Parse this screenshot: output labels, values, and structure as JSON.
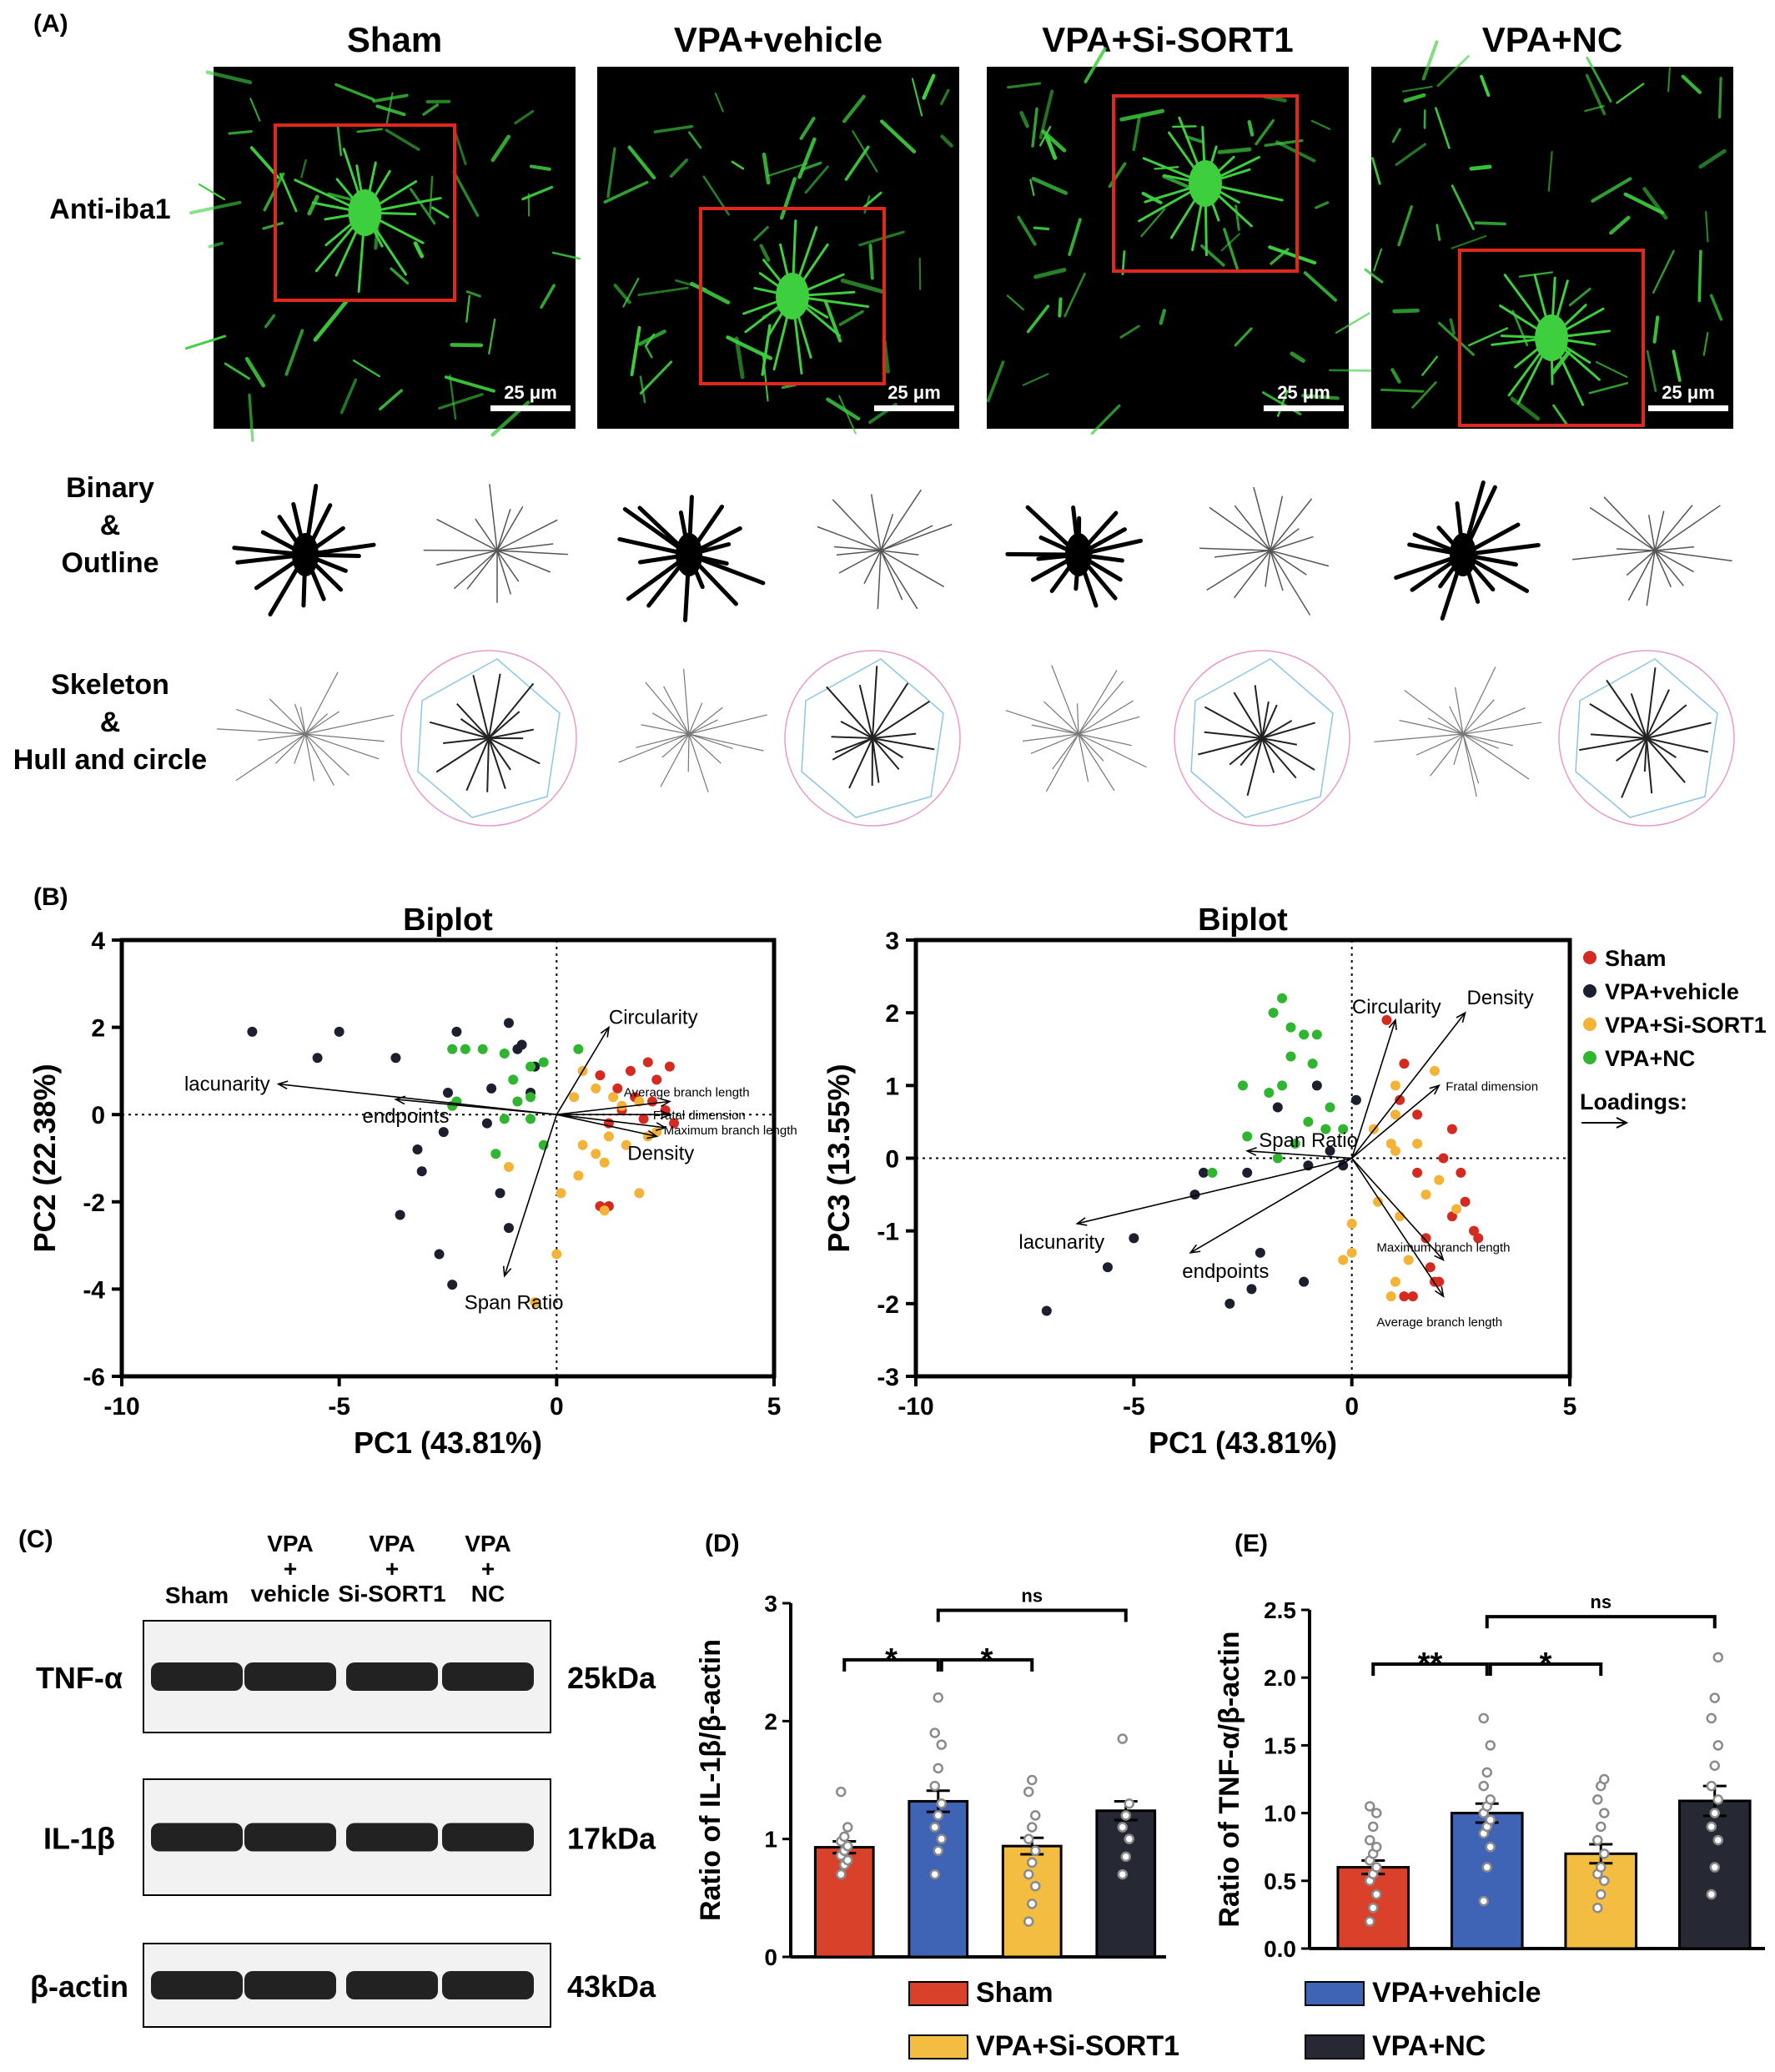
{
  "panel_labels": [
    "(A)",
    "(B)",
    "(C)",
    "(D)",
    "(E)"
  ],
  "panel_a": {
    "columns": [
      "Sham",
      "VPA+vehicle",
      "VPA+Si-SORT1",
      "VPA+NC"
    ],
    "row_labels": [
      [
        "Anti-iba1"
      ],
      [
        "Binary",
        "&",
        "Outline"
      ],
      [
        "Skeleton",
        "&",
        "Hull and circle"
      ]
    ],
    "scale_bar": "25 μm",
    "colors": {
      "stain": "#3ecf3e",
      "box": "#e0281e"
    }
  },
  "groups": [
    {
      "name": "Sham",
      "color": "#d42a20"
    },
    {
      "name": "VPA+vehicle",
      "color": "#1b1f2e"
    },
    {
      "name": "VPA+Si-SORT1",
      "color": "#f2b336"
    },
    {
      "name": "VPA+NC",
      "color": "#2fb52f"
    }
  ],
  "biplot_legend_extra": "Loadings:",
  "panel_c": {
    "lanes": [
      "Sham",
      "VPA\n+\nvehicle",
      "VPA\n+\nSi-SORT1",
      "VPA\n+\nNC"
    ],
    "bands": [
      {
        "name": "TNF-α",
        "kda": "25kDa"
      },
      {
        "name": "IL-1β",
        "kda": "17kDa"
      },
      {
        "name": "β-actin",
        "kda": "43kDa"
      }
    ]
  },
  "bar_legend": [
    {
      "name": "Sham",
      "color": "#d9412b"
    },
    {
      "name": "VPA+vehicle",
      "color": "#3f63b5"
    },
    {
      "name": "VPA+Si-SORT1",
      "color": "#f2bd41"
    },
    {
      "name": "VPA+NC",
      "color": "#262833"
    }
  ],
  "chart_data": [
    {
      "type": "scatter",
      "title": "Biplot",
      "xlabel": "PC1 (43.81%)",
      "ylabel": "PC2 (22.38%)",
      "xlim": [
        -10,
        5
      ],
      "ylim": [
        -6,
        4
      ],
      "xticks": [
        -10,
        -5,
        0,
        5
      ],
      "yticks": [
        -6,
        -4,
        -2,
        0,
        2,
        4
      ],
      "series": [
        {
          "name": "Sham",
          "points": [
            [
              1.0,
              0.9
            ],
            [
              1.4,
              0.6
            ],
            [
              1.7,
              1.0
            ],
            [
              2.1,
              1.2
            ],
            [
              2.3,
              0.8
            ],
            [
              2.6,
              1.1
            ],
            [
              2.2,
              0.3
            ],
            [
              2.5,
              0.1
            ],
            [
              2.0,
              -0.1
            ],
            [
              1.2,
              -0.2
            ],
            [
              1.8,
              0.4
            ],
            [
              2.7,
              -0.2
            ],
            [
              1.0,
              -2.1
            ],
            [
              1.2,
              -2.1
            ],
            [
              1.5,
              0.1
            ]
          ]
        },
        {
          "name": "VPA+vehicle",
          "points": [
            [
              -7.0,
              1.9
            ],
            [
              -5.0,
              1.9
            ],
            [
              -5.5,
              1.3
            ],
            [
              -3.7,
              1.3
            ],
            [
              -2.3,
              1.9
            ],
            [
              -1.1,
              2.1
            ],
            [
              -0.9,
              1.5
            ],
            [
              -0.5,
              1.1
            ],
            [
              -0.8,
              1.6
            ],
            [
              -0.6,
              0.5
            ],
            [
              -1.5,
              0.6
            ],
            [
              -2.5,
              0.5
            ],
            [
              -1.6,
              -0.2
            ],
            [
              -2.6,
              -0.4
            ],
            [
              -3.2,
              -0.8
            ],
            [
              -3.1,
              -1.3
            ],
            [
              -1.3,
              -1.8
            ],
            [
              -3.6,
              -2.3
            ],
            [
              -1.1,
              -2.6
            ],
            [
              -2.7,
              -3.2
            ],
            [
              -2.4,
              -3.9
            ]
          ]
        },
        {
          "name": "VPA+Si-SORT1",
          "points": [
            [
              0.6,
              1.0
            ],
            [
              0.9,
              0.6
            ],
            [
              1.3,
              0.4
            ],
            [
              1.5,
              0.2
            ],
            [
              0.4,
              0.4
            ],
            [
              1.9,
              0.3
            ],
            [
              1.2,
              -0.5
            ],
            [
              1.6,
              -0.7
            ],
            [
              0.6,
              -0.7
            ],
            [
              2.1,
              -0.5
            ],
            [
              2.3,
              -0.4
            ],
            [
              0.9,
              -0.9
            ],
            [
              0.5,
              -1.4
            ],
            [
              1.1,
              -1.1
            ],
            [
              0.1,
              -1.8
            ],
            [
              1.1,
              -2.2
            ],
            [
              1.9,
              -1.8
            ],
            [
              -1.1,
              -1.2
            ],
            [
              0.0,
              -3.2
            ],
            [
              -0.5,
              -4.3
            ]
          ]
        },
        {
          "name": "VPA+NC",
          "points": [
            [
              -2.4,
              1.5
            ],
            [
              -2.1,
              1.5
            ],
            [
              -1.7,
              1.5
            ],
            [
              -1.2,
              1.4
            ],
            [
              -0.6,
              1.1
            ],
            [
              0.5,
              1.5
            ],
            [
              -0.3,
              1.2
            ],
            [
              -1.0,
              0.8
            ],
            [
              -2.3,
              0.3
            ],
            [
              -2.4,
              0.2
            ],
            [
              -1.2,
              -0.1
            ],
            [
              -0.6,
              0.4
            ],
            [
              -0.3,
              -0.7
            ],
            [
              -1.4,
              -0.9
            ],
            [
              -0.9,
              0.3
            ],
            [
              -0.6,
              -0.1
            ]
          ]
        }
      ],
      "loadings": [
        {
          "name": "lacunarity",
          "x": -6.4,
          "y": 0.7
        },
        {
          "name": "endpoints",
          "x": -3.7,
          "y": 0.35
        },
        {
          "name": "Circularity",
          "x": 1.2,
          "y": 2.0
        },
        {
          "name": "Average branch length",
          "x": 2.6,
          "y": 0.3
        },
        {
          "name": "Fratal dimension",
          "x": 2.6,
          "y": 0.0
        },
        {
          "name": "Maximum branch length",
          "x": 2.5,
          "y": -0.3
        },
        {
          "name": "Density",
          "x": 2.3,
          "y": -0.5
        },
        {
          "name": "Span Ratio",
          "x": -1.2,
          "y": -3.7
        }
      ]
    },
    {
      "type": "scatter",
      "title": "Biplot",
      "xlabel": "PC1 (43.81%)",
      "ylabel": "PC3 (13.55%)",
      "xlim": [
        -10,
        5
      ],
      "ylim": [
        -3,
        3
      ],
      "xticks": [
        -10,
        -5,
        0,
        5
      ],
      "yticks": [
        -3,
        -2,
        -1,
        0,
        1,
        2,
        3
      ],
      "series": [
        {
          "name": "Sham",
          "points": [
            [
              0.8,
              1.9
            ],
            [
              1.2,
              1.3
            ],
            [
              1.1,
              0.8
            ],
            [
              1.5,
              0.6
            ],
            [
              2.3,
              0.4
            ],
            [
              2.1,
              0.0
            ],
            [
              2.5,
              -0.2
            ],
            [
              2.6,
              -0.6
            ],
            [
              2.3,
              -0.8
            ],
            [
              2.8,
              -1.0
            ],
            [
              2.9,
              -1.1
            ],
            [
              1.7,
              -1.1
            ],
            [
              1.5,
              -0.2
            ],
            [
              1.8,
              -1.5
            ],
            [
              1.9,
              -1.7
            ],
            [
              2.0,
              -1.7
            ],
            [
              1.2,
              -1.9
            ],
            [
              1.4,
              -1.9
            ]
          ]
        },
        {
          "name": "VPA+vehicle",
          "points": [
            [
              -7.0,
              -2.1
            ],
            [
              -5.6,
              -1.5
            ],
            [
              -5.0,
              -1.1
            ],
            [
              -3.6,
              -0.5
            ],
            [
              -3.4,
              -0.2
            ],
            [
              -2.4,
              -0.2
            ],
            [
              -1.0,
              -0.1
            ],
            [
              -0.5,
              0.1
            ],
            [
              -0.8,
              1.0
            ],
            [
              0.1,
              0.8
            ],
            [
              -1.7,
              0.7
            ],
            [
              -2.1,
              -1.3
            ],
            [
              -2.3,
              -1.8
            ],
            [
              -2.8,
              -2.0
            ],
            [
              -1.1,
              -1.7
            ],
            [
              -0.2,
              -0.1
            ]
          ]
        },
        {
          "name": "VPA+Si-SORT1",
          "points": [
            [
              1.0,
              1.0
            ],
            [
              1.9,
              1.2
            ],
            [
              1.0,
              0.6
            ],
            [
              0.5,
              0.4
            ],
            [
              0.9,
              0.2
            ],
            [
              1.5,
              0.2
            ],
            [
              2.0,
              -0.3
            ],
            [
              1.7,
              -0.5
            ],
            [
              0.6,
              -0.6
            ],
            [
              1.1,
              -0.8
            ],
            [
              0.0,
              -0.9
            ],
            [
              0.0,
              -1.3
            ],
            [
              -0.2,
              -1.4
            ],
            [
              1.3,
              -1.4
            ],
            [
              1.0,
              -1.7
            ],
            [
              0.9,
              -1.9
            ],
            [
              2.4,
              -0.7
            ],
            [
              1.0,
              0.1
            ]
          ]
        },
        {
          "name": "VPA+NC",
          "points": [
            [
              -1.6,
              2.2
            ],
            [
              -1.8,
              2.0
            ],
            [
              -1.4,
              1.8
            ],
            [
              -1.1,
              1.7
            ],
            [
              -0.8,
              1.7
            ],
            [
              -1.4,
              1.4
            ],
            [
              -0.9,
              1.3
            ],
            [
              -1.6,
              1.0
            ],
            [
              -2.5,
              1.0
            ],
            [
              -1.9,
              0.9
            ],
            [
              -1.0,
              0.5
            ],
            [
              -0.6,
              0.4
            ],
            [
              -2.4,
              0.3
            ],
            [
              -1.7,
              0.0
            ],
            [
              -3.2,
              -0.2
            ],
            [
              -1.3,
              0.2
            ],
            [
              -0.5,
              0.7
            ],
            [
              -0.2,
              0.4
            ]
          ]
        }
      ],
      "loadings": [
        {
          "name": "lacunarity",
          "x": -6.3,
          "y": -0.9
        },
        {
          "name": "endpoints",
          "x": -3.7,
          "y": -1.3
        },
        {
          "name": "Span Ratio",
          "x": -2.4,
          "y": 0.1
        },
        {
          "name": "Circularity",
          "x": 1.0,
          "y": 1.9
        },
        {
          "name": "Density",
          "x": 2.6,
          "y": 2.0
        },
        {
          "name": "Fratal dimension",
          "x": 2.0,
          "y": 1.0
        },
        {
          "name": "Maximum branch length",
          "x": 2.1,
          "y": -1.4
        },
        {
          "name": "Average branch length",
          "x": 2.1,
          "y": -1.9
        }
      ]
    },
    {
      "type": "bar",
      "ylabel": "Ratio of IL-1β/β-actin",
      "ylim": [
        0,
        3
      ],
      "yticks": [
        0,
        1,
        2,
        3
      ],
      "categories": [
        "Sham",
        "VPA+vehicle",
        "VPA+Si-SORT1",
        "VPA+NC"
      ],
      "values": [
        0.93,
        1.32,
        0.94,
        1.24
      ],
      "errors": [
        0.05,
        0.09,
        0.07,
        0.08
      ],
      "points": [
        [
          0.7,
          0.78,
          0.82,
          0.86,
          0.9,
          0.94,
          0.98,
          1.02,
          1.1,
          1.4
        ],
        [
          0.7,
          0.9,
          1.0,
          1.1,
          1.2,
          1.3,
          1.45,
          1.6,
          1.8,
          1.9,
          2.2
        ],
        [
          0.3,
          0.45,
          0.6,
          0.7,
          0.8,
          0.9,
          1.0,
          1.1,
          1.2,
          1.4,
          1.5
        ],
        [
          0.7,
          0.85,
          1.0,
          1.1,
          1.2,
          1.3,
          1.85
        ]
      ],
      "significance": [
        {
          "from": 0,
          "to": 1,
          "label": "*"
        },
        {
          "from": 1,
          "to": 2,
          "label": "*"
        },
        {
          "from": 1,
          "to": 3,
          "label": "ns"
        }
      ]
    },
    {
      "type": "bar",
      "ylabel": "Ratio of TNF-α/β-actin",
      "ylim": [
        0,
        2.5
      ],
      "yticks": [
        0.0,
        0.5,
        1.0,
        1.5,
        2.0,
        2.5
      ],
      "categories": [
        "Sham",
        "VPA+vehicle",
        "VPA+Si-SORT1",
        "VPA+NC"
      ],
      "values": [
        0.6,
        1.0,
        0.7,
        1.09
      ],
      "errors": [
        0.05,
        0.07,
        0.07,
        0.11
      ],
      "points": [
        [
          0.2,
          0.3,
          0.4,
          0.5,
          0.55,
          0.6,
          0.65,
          0.7,
          0.75,
          0.8,
          0.9,
          1.0,
          1.05
        ],
        [
          0.35,
          0.6,
          0.75,
          0.85,
          0.9,
          0.95,
          1.0,
          1.05,
          1.1,
          1.2,
          1.3,
          1.5,
          1.7
        ],
        [
          0.3,
          0.4,
          0.5,
          0.55,
          0.6,
          0.7,
          0.8,
          0.9,
          1.0,
          1.1,
          1.2,
          1.25
        ],
        [
          0.4,
          0.6,
          0.8,
          0.9,
          1.0,
          1.1,
          1.2,
          1.35,
          1.5,
          1.7,
          1.85,
          2.15
        ]
      ],
      "significance": [
        {
          "from": 0,
          "to": 1,
          "label": "**"
        },
        {
          "from": 1,
          "to": 2,
          "label": "*"
        },
        {
          "from": 1,
          "to": 3,
          "label": "ns"
        }
      ]
    }
  ]
}
